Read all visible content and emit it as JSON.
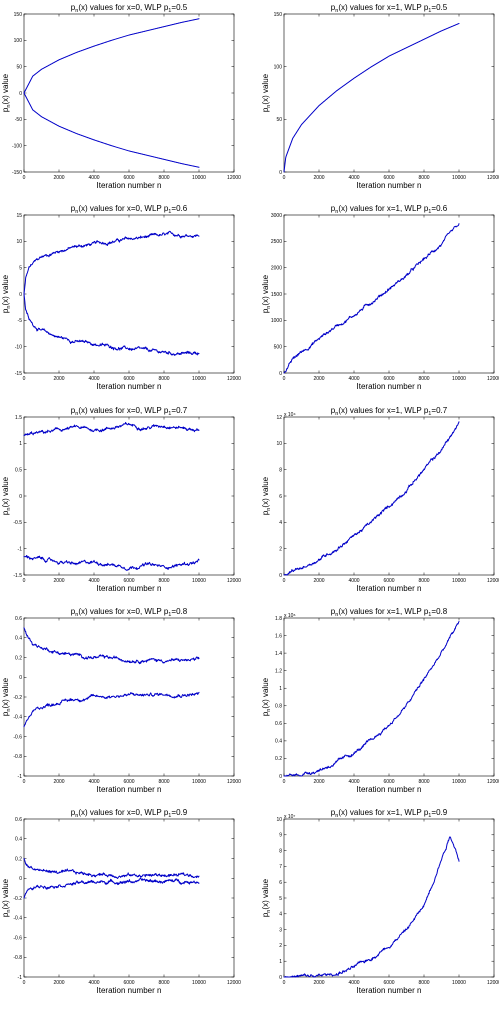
{
  "figure": {
    "x_tick_labels": [
      "0",
      "2000",
      "4000",
      "6000",
      "8000",
      "10000",
      "12000"
    ],
    "series_color": "#0000c8",
    "background": "#ffffff"
  },
  "chart_data": [
    {
      "type": "line",
      "title_parts": [
        "p",
        "n",
        "(x) values for x=0, WLP p",
        "1",
        "=0.5"
      ],
      "xlabel": "Iteration number n",
      "ylabel_parts": [
        "p",
        "n",
        "(x) value"
      ],
      "xlim": [
        0,
        12000
      ],
      "ylim": [
        -150,
        150
      ],
      "y_tick_labels": [
        "-150",
        "-100",
        "-50",
        "0",
        "50",
        "100",
        "150"
      ],
      "y_exponent": "",
      "series": [
        {
          "x": [
            0,
            500,
            1000,
            2000,
            3000,
            4000,
            5000,
            6000,
            7000,
            8000,
            9000,
            10000
          ],
          "y": [
            0,
            32,
            45,
            63,
            77,
            89,
            100,
            110,
            118,
            126,
            134,
            141
          ]
        },
        {
          "x": [
            0,
            500,
            1000,
            2000,
            3000,
            4000,
            5000,
            6000,
            7000,
            8000,
            9000,
            10000
          ],
          "y": [
            0,
            -32,
            -45,
            -63,
            -77,
            -89,
            -100,
            -110,
            -118,
            -126,
            -134,
            -141
          ]
        }
      ]
    },
    {
      "type": "line",
      "title_parts": [
        "p",
        "n",
        "(x) values for x=1, WLP p",
        "1",
        "=0.5"
      ],
      "xlabel": "Iteration number n",
      "ylabel_parts": [
        "p",
        "n",
        "(x) value"
      ],
      "xlim": [
        0,
        12000
      ],
      "ylim": [
        0,
        150
      ],
      "y_tick_labels": [
        "0",
        "50",
        "100",
        "150"
      ],
      "y_exponent": "",
      "series": [
        {
          "x": [
            0,
            100,
            500,
            1000,
            2000,
            3000,
            4000,
            5000,
            6000,
            7000,
            8000,
            9000,
            10000
          ],
          "y": [
            0,
            14,
            32,
            45,
            63,
            77,
            89,
            100,
            110,
            118,
            126,
            134,
            141
          ]
        }
      ]
    },
    {
      "type": "line",
      "title_parts": [
        "p",
        "n",
        "(x) values for x=0, WLP p",
        "1",
        "=0.6"
      ],
      "xlabel": "Iteration number n",
      "ylabel_parts": [
        "p",
        "n",
        "(x) value"
      ],
      "xlim": [
        0,
        12000
      ],
      "ylim": [
        -15,
        15
      ],
      "y_tick_labels": [
        "-15",
        "-10",
        "-5",
        "0",
        "5",
        "10",
        "15"
      ],
      "y_exponent": "",
      "series": [
        {
          "x": [
            0,
            100,
            300,
            600,
            1000,
            2000,
            3000,
            4000,
            5000,
            6000,
            7000,
            8000,
            9000,
            10000
          ],
          "y": [
            0,
            3,
            5,
            6,
            7,
            8.2,
            9,
            9.5,
            10,
            10.4,
            10.8,
            11.1,
            11.3,
            11.2
          ]
        },
        {
          "x": [
            0,
            100,
            300,
            600,
            1000,
            2000,
            3000,
            4000,
            5000,
            6000,
            7000,
            8000,
            9000,
            10000
          ],
          "y": [
            0,
            -3,
            -5,
            -6,
            -7,
            -8.2,
            -9,
            -9.5,
            -10,
            -10.4,
            -10.8,
            -11.1,
            -11.3,
            -11.2
          ]
        }
      ]
    },
    {
      "type": "line",
      "title_parts": [
        "p",
        "n",
        "(x) values for x=1, WLP p",
        "1",
        "=0.6"
      ],
      "xlabel": "Iteration number n",
      "ylabel_parts": [
        "p",
        "n",
        "(x) value"
      ],
      "xlim": [
        0,
        12000
      ],
      "ylim": [
        0,
        3000
      ],
      "y_tick_labels": [
        "0",
        "500",
        "1000",
        "1500",
        "2000",
        "2500",
        "3000"
      ],
      "y_exponent": "",
      "series": [
        {
          "x": [
            0,
            500,
            1000,
            2000,
            3000,
            4000,
            5000,
            6000,
            7000,
            8000,
            9000,
            10000
          ],
          "y": [
            0,
            250,
            400,
            650,
            900,
            1100,
            1350,
            1600,
            1850,
            2150,
            2450,
            2800
          ]
        }
      ]
    },
    {
      "type": "line",
      "title_parts": [
        "p",
        "n",
        "(x) values for x=0, WLP p",
        "1",
        "=0.7"
      ],
      "xlabel": "Iteration number n",
      "ylabel_parts": [
        "p",
        "n",
        "(x) value"
      ],
      "xlim": [
        0,
        12000
      ],
      "ylim": [
        -1.5,
        1.5
      ],
      "y_tick_labels": [
        "-1.5",
        "-1",
        "-0.5",
        "0",
        "0.5",
        "1",
        "1.5"
      ],
      "y_exponent": "",
      "series": [
        {
          "x": [
            0,
            1000,
            2000,
            3000,
            4000,
            5000,
            6000,
            7000,
            8000,
            9000,
            10000
          ],
          "y": [
            1.15,
            1.2,
            1.25,
            1.3,
            1.25,
            1.3,
            1.35,
            1.3,
            1.35,
            1.3,
            1.25
          ]
        },
        {
          "x": [
            0,
            1000,
            2000,
            3000,
            4000,
            5000,
            6000,
            7000,
            8000,
            9000,
            10000
          ],
          "y": [
            -1.15,
            -1.2,
            -1.25,
            -1.3,
            -1.25,
            -1.3,
            -1.35,
            -1.3,
            -1.35,
            -1.3,
            -1.25
          ]
        }
      ]
    },
    {
      "type": "line",
      "title_parts": [
        "p",
        "n",
        "(x) values for x=1, WLP p",
        "1",
        "=0.7"
      ],
      "xlabel": "Iteration number n",
      "ylabel_parts": [
        "p",
        "n",
        "(x) value"
      ],
      "xlim": [
        0,
        12000
      ],
      "ylim": [
        0,
        120000
      ],
      "y_tick_labels": [
        "0",
        "2",
        "4",
        "6",
        "8",
        "10",
        "12"
      ],
      "y_exponent": "x 10⁴",
      "series": [
        {
          "x": [
            0,
            1000,
            2000,
            3000,
            4000,
            5000,
            6000,
            7000,
            8000,
            9000,
            10000
          ],
          "y": [
            0,
            5000,
            12000,
            20000,
            30000,
            40000,
            52000,
            65000,
            80000,
            95000,
            115000
          ]
        }
      ]
    },
    {
      "type": "line",
      "title_parts": [
        "p",
        "n",
        "(x) values for x=0, WLP p",
        "1",
        "=0.8"
      ],
      "xlabel": "Iteration number n",
      "ylabel_parts": [
        "p",
        "n",
        "(x) value"
      ],
      "xlim": [
        0,
        12000
      ],
      "ylim": [
        -1,
        0.6
      ],
      "y_tick_labels": [
        "-1",
        "-0.8",
        "-0.6",
        "-0.4",
        "-0.2",
        "0",
        "0.2",
        "0.4",
        "0.6"
      ],
      "y_exponent": "",
      "series": [
        {
          "x": [
            0,
            200,
            500,
            1000,
            2000,
            3000,
            4000,
            5000,
            6000,
            7000,
            8000,
            9000,
            10000
          ],
          "y": [
            0.5,
            0.42,
            0.35,
            0.3,
            0.25,
            0.22,
            0.2,
            0.19,
            0.18,
            0.18,
            0.17,
            0.17,
            0.17
          ]
        },
        {
          "x": [
            0,
            200,
            500,
            1000,
            2000,
            3000,
            4000,
            5000,
            6000,
            7000,
            8000,
            9000,
            10000
          ],
          "y": [
            -0.5,
            -0.42,
            -0.35,
            -0.3,
            -0.25,
            -0.22,
            -0.2,
            -0.19,
            -0.18,
            -0.18,
            -0.17,
            -0.17,
            -0.17
          ]
        }
      ]
    },
    {
      "type": "line",
      "title_parts": [
        "p",
        "n",
        "(x) values for x=1, WLP p",
        "1",
        "=0.8"
      ],
      "xlabel": "Iteration number n",
      "ylabel_parts": [
        "p",
        "n",
        "(x) value"
      ],
      "xlim": [
        0,
        12000
      ],
      "ylim": [
        0,
        1800000
      ],
      "y_tick_labels": [
        "0",
        "0.2",
        "0.4",
        "0.6",
        "0.8",
        "1",
        "1.2",
        "1.4",
        "1.6",
        "1.8"
      ],
      "y_exponent": "x 10⁶",
      "series": [
        {
          "x": [
            0,
            1000,
            2000,
            3000,
            4000,
            5000,
            6000,
            7000,
            8000,
            9000,
            10000
          ],
          "y": [
            0,
            20000,
            70000,
            150000,
            260000,
            400000,
            580000,
            800000,
            1100000,
            1400000,
            1750000
          ]
        }
      ]
    },
    {
      "type": "line",
      "title_parts": [
        "p",
        "n",
        "(x) values for x=0, WLP p",
        "1",
        "=0.9"
      ],
      "xlabel": "Iteration number n",
      "ylabel_parts": [
        "p",
        "n",
        "(x) value"
      ],
      "xlim": [
        0,
        12000
      ],
      "ylim": [
        -1,
        0.6
      ],
      "y_tick_labels": [
        "-1",
        "-0.8",
        "-0.6",
        "-0.4",
        "-0.2",
        "0",
        "0.2",
        "0.4",
        "0.6"
      ],
      "y_exponent": "",
      "series": [
        {
          "x": [
            0,
            100,
            300,
            600,
            1000,
            2000,
            3000,
            4000,
            5000,
            6000,
            7000,
            8000,
            9000,
            10000
          ],
          "y": [
            0.2,
            0.15,
            0.12,
            0.1,
            0.08,
            0.06,
            0.05,
            0.04,
            0.035,
            0.03,
            0.03,
            0.03,
            0.03,
            0.03
          ]
        },
        {
          "x": [
            0,
            100,
            300,
            600,
            1000,
            2000,
            3000,
            4000,
            5000,
            6000,
            7000,
            8000,
            9000,
            10000
          ],
          "y": [
            -0.2,
            -0.15,
            -0.12,
            -0.1,
            -0.08,
            -0.06,
            -0.05,
            -0.04,
            -0.035,
            -0.03,
            -0.03,
            -0.03,
            -0.03,
            -0.03
          ]
        }
      ]
    },
    {
      "type": "line",
      "title_parts": [
        "p",
        "n",
        "(x) values for x=1, WLP p",
        "1",
        "=0.9"
      ],
      "xlabel": "Iteration number n",
      "ylabel_parts": [
        "p",
        "n",
        "(x) value"
      ],
      "xlim": [
        0,
        12000
      ],
      "ylim": [
        0,
        100000000
      ],
      "y_tick_labels": [
        "0",
        "1",
        "2",
        "3",
        "4",
        "5",
        "6",
        "7",
        "8",
        "9",
        "10"
      ],
      "y_exponent": "x 10⁷",
      "series": [
        {
          "x": [
            0,
            2000,
            3000,
            4000,
            5000,
            6000,
            7000,
            8000,
            8500,
            9000,
            9500,
            10000
          ],
          "y": [
            0,
            500000,
            2000000,
            6000000,
            12000000,
            20000000,
            30000000,
            45000000,
            60000000,
            75000000,
            90000000,
            75000000
          ]
        }
      ]
    }
  ]
}
